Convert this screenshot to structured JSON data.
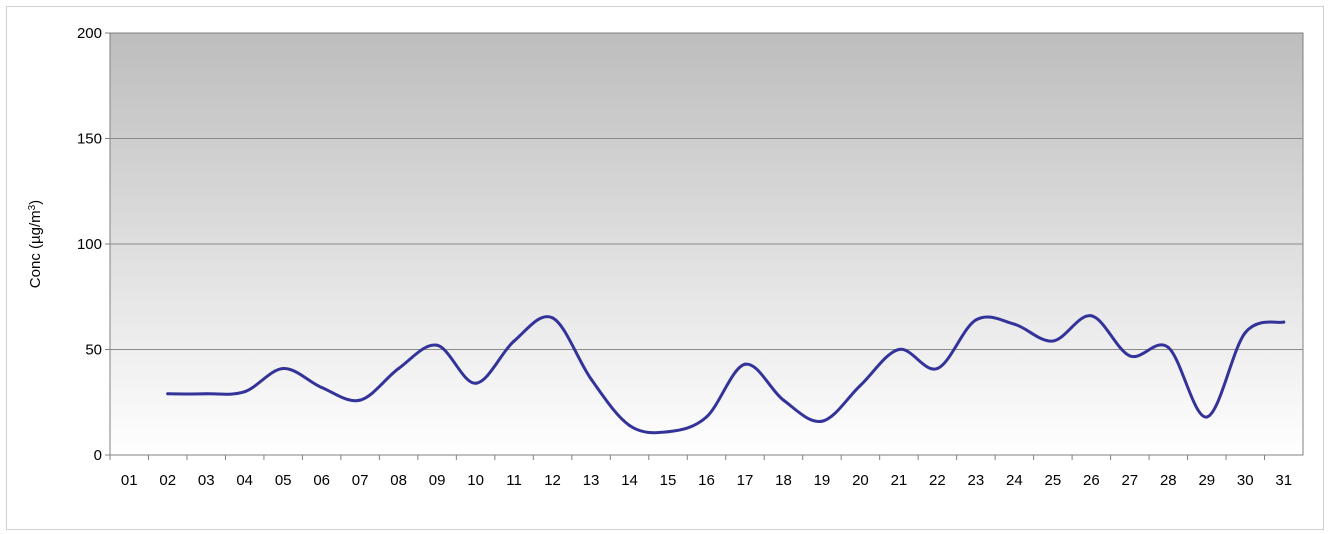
{
  "chart_data": {
    "type": "line",
    "title": "",
    "xlabel": "",
    "ylabel": "Conc (µg/m",
    "ylabel_superscript": "3",
    "ylabel_suffix": ")",
    "ylim": [
      0,
      200
    ],
    "yticks": [
      0,
      50,
      100,
      150,
      200
    ],
    "grid": true,
    "categories": [
      "01",
      "02",
      "03",
      "04",
      "05",
      "06",
      "07",
      "08",
      "09",
      "10",
      "11",
      "12",
      "13",
      "14",
      "15",
      "16",
      "17",
      "18",
      "19",
      "20",
      "21",
      "22",
      "23",
      "24",
      "25",
      "26",
      "27",
      "28",
      "29",
      "30",
      "31"
    ],
    "series": [
      {
        "color": "#333399",
        "values": [
          null,
          29,
          29,
          30,
          41,
          32,
          26,
          41,
          52,
          34,
          54,
          65,
          36,
          14,
          11,
          18,
          43,
          26,
          16,
          33,
          50,
          41,
          64,
          62,
          54,
          66,
          47,
          51,
          18,
          58,
          63
        ]
      }
    ],
    "colors": {
      "plot_top": "#bdbdbd",
      "plot_bottom": "#ffffff",
      "gridline": "#8a8a8a",
      "line": "#333399"
    }
  }
}
